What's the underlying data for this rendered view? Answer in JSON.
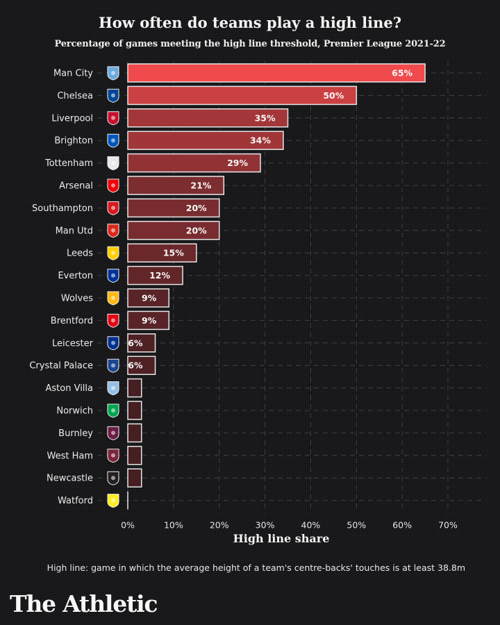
{
  "chart_data": {
    "type": "bar",
    "orientation": "horizontal",
    "title": "How often do teams play a high line?",
    "subtitle": "Percentage of games meeting the high line threshold, Premier League 2021-22",
    "xlabel": "High line share",
    "ylabel": "",
    "xlim": [
      0,
      70
    ],
    "grid": true,
    "xticks": [
      0,
      10,
      20,
      30,
      40,
      50,
      60,
      70
    ],
    "xtick_labels": [
      "0%",
      "10%",
      "20%",
      "30%",
      "40%",
      "50%",
      "60%",
      "70%"
    ],
    "categories": [
      "Man City",
      "Chelsea",
      "Liverpool",
      "Brighton",
      "Tottenham",
      "Arsenal",
      "Southampton",
      "Man Utd",
      "Leeds",
      "Everton",
      "Wolves",
      "Brentford",
      "Leicester",
      "Crystal Palace",
      "Aston Villa",
      "Norwich",
      "Burnley",
      "West Ham",
      "Newcastle",
      "Watford"
    ],
    "values": [
      65,
      50,
      35,
      34,
      29,
      21,
      20,
      20,
      15,
      12,
      9,
      9,
      6,
      6,
      3,
      3,
      3,
      3,
      3,
      0
    ],
    "data_labels": [
      "65%",
      "50%",
      "35%",
      "34%",
      "29%",
      "21%",
      "20%",
      "20%",
      "15%",
      "12%",
      "9%",
      "9%",
      "6%",
      "6%",
      "",
      "",
      "",
      "",
      "",
      ""
    ],
    "crest_icons": [
      "man-city-crest-icon",
      "chelsea-crest-icon",
      "liverpool-crest-icon",
      "brighton-crest-icon",
      "tottenham-crest-icon",
      "arsenal-crest-icon",
      "southampton-crest-icon",
      "man-utd-crest-icon",
      "leeds-crest-icon",
      "everton-crest-icon",
      "wolves-crest-icon",
      "brentford-crest-icon",
      "leicester-crest-icon",
      "crystal-palace-crest-icon",
      "aston-villa-crest-icon",
      "norwich-crest-icon",
      "burnley-crest-icon",
      "west-ham-crest-icon",
      "newcastle-crest-icon",
      "watford-crest-icon"
    ],
    "crest_colors": [
      "#6cabdd",
      "#034694",
      "#c8102e",
      "#0057b8",
      "#e8e8e8",
      "#ef0107",
      "#d71920",
      "#da291c",
      "#ffcd00",
      "#003399",
      "#fdb913",
      "#e30613",
      "#003090",
      "#1b458f",
      "#95bfe5",
      "#00a650",
      "#6c1d45",
      "#7a263a",
      "#241f20",
      "#fbee23"
    ],
    "bar_color_max": "#f04a4c",
    "bar_color_min": "#3a1c1f",
    "bar_stroke": "#e6e6e6"
  },
  "note": "High line: game in which the average height of a team's centre-backs' touches is at least 38.8m",
  "brand": "The Athletic"
}
